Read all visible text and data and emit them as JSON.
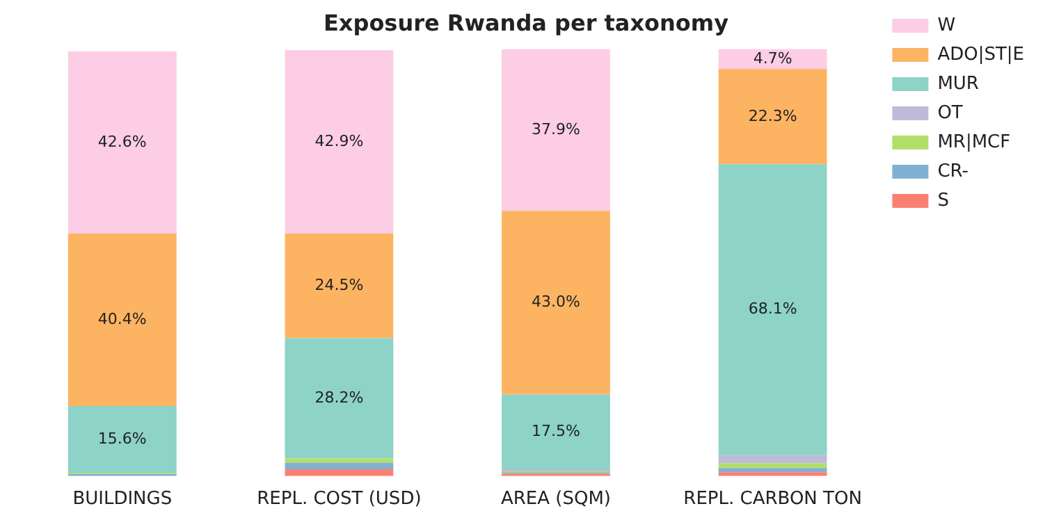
{
  "chart_data": {
    "type": "bar",
    "title": "Exposure Rwanda per taxonomy",
    "stacked": true,
    "legend": "top right",
    "grid": false,
    "categories": [
      "BUILDINGS",
      "REPL. COST (USD)",
      "AREA (SQM)",
      "REPL. CARBON TON"
    ],
    "series": [
      {
        "name": "S",
        "color": "#fb8072",
        "values": [
          null,
          1.6,
          0.5,
          0.9
        ]
      },
      {
        "name": "CR-",
        "color": "#80b1d3",
        "values": [
          0.5,
          1.5,
          0.3,
          1.0
        ]
      },
      {
        "name": "MR|MCF",
        "color": "#b3de69",
        "values": [
          0.3,
          1.0,
          0.3,
          1.1
        ]
      },
      {
        "name": "OT",
        "color": "#bebada",
        "values": [
          null,
          null,
          0.5,
          1.9
        ]
      },
      {
        "name": "MUR",
        "color": "#8dd3c7",
        "values": [
          15.6,
          28.2,
          17.5,
          68.1
        ],
        "value_labels": [
          "15.6%",
          "28.2%",
          "17.5%",
          "68.1%"
        ]
      },
      {
        "name": "ADO|ST|E",
        "color": "#fdb462",
        "values": [
          40.4,
          24.5,
          43.0,
          22.3
        ],
        "value_labels": [
          "40.4%",
          "24.5%",
          "43.0%",
          "22.3%"
        ]
      },
      {
        "name": "W",
        "color": "#fccde5",
        "values": [
          42.6,
          42.9,
          37.9,
          4.7
        ],
        "value_labels": [
          "42.6%",
          "42.9%",
          "37.9%",
          "4.7%"
        ]
      }
    ]
  }
}
